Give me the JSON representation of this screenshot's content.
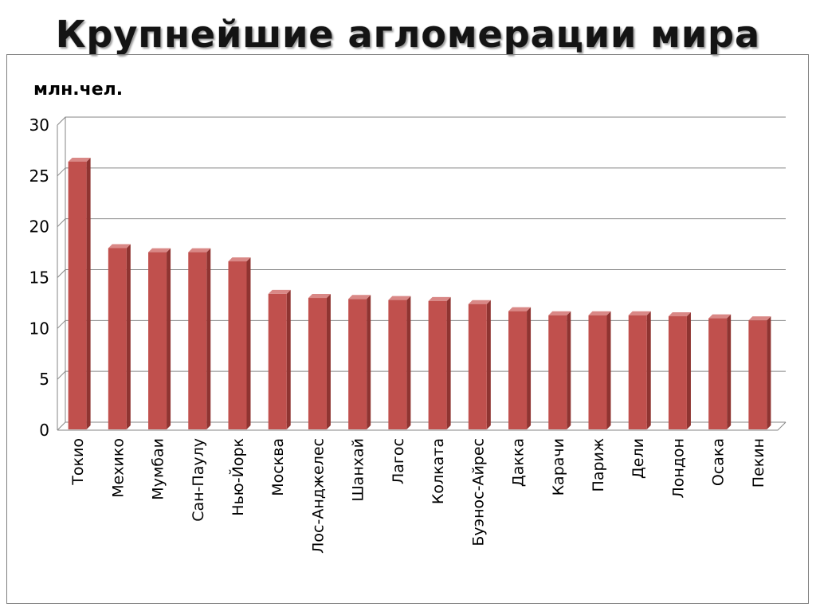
{
  "title": "Крупнейшие  агломерации мира",
  "chart_data": {
    "type": "bar",
    "unit_label": "млн.чел.",
    "categories": [
      "Токио",
      "Мехико",
      "Мумбаи",
      "Сан-Паулу",
      "Нью-Йорк",
      "Москва",
      "Лос-Анджелес",
      "Шанхай",
      "Лагос",
      "Колката",
      "Буэнос-Айрес",
      "Дакка",
      "Карачи",
      "Париж",
      "Дели",
      "Лондон",
      "Осака",
      "Пекин"
    ],
    "values": [
      26.4,
      17.9,
      17.5,
      17.5,
      16.6,
      13.4,
      13.0,
      12.9,
      12.8,
      12.7,
      12.4,
      11.7,
      11.3,
      11.3,
      11.3,
      11.2,
      11.0,
      10.8
    ],
    "ylim": [
      0,
      30
    ],
    "yticks": [
      0,
      5,
      10,
      15,
      20,
      25,
      30
    ],
    "grid": true,
    "legend": "none",
    "bar_color": "#c0504d"
  }
}
